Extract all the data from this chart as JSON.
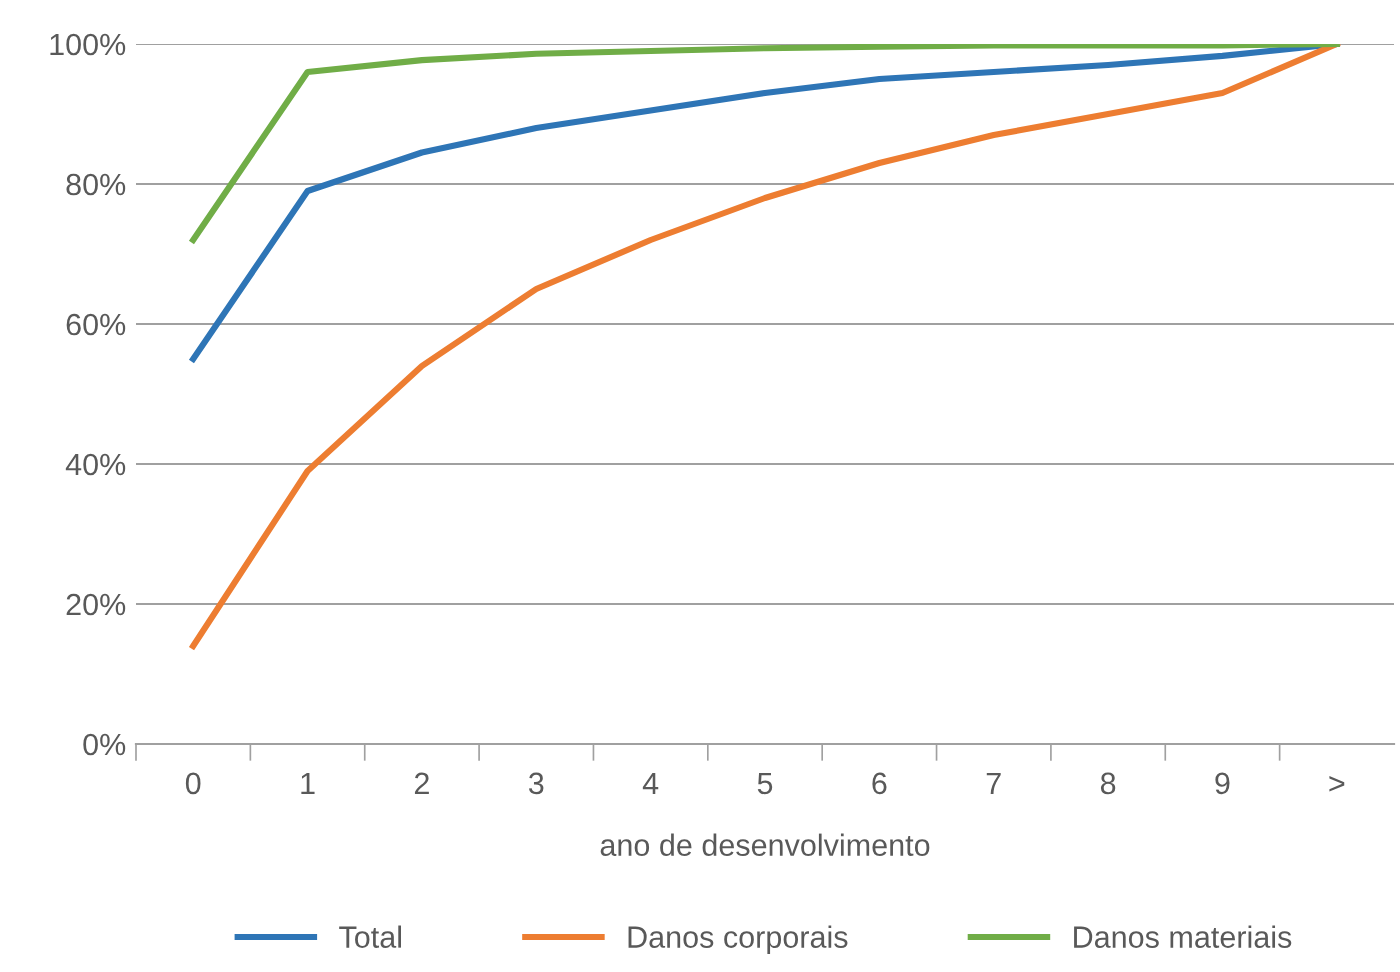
{
  "chart_data": {
    "type": "line",
    "xlabel": "ano de desenvolvimento",
    "categories": [
      "0",
      "1",
      "2",
      "3",
      "4",
      "5",
      "6",
      "7",
      "8",
      "9",
      ">"
    ],
    "series": [
      {
        "name": "Total",
        "color": "#2e75b6",
        "values": [
          55,
          79,
          84.5,
          88,
          90.5,
          93,
          95,
          96,
          97,
          98.3,
          100
        ]
      },
      {
        "name": "Danos corporais",
        "color": "#ed7d31",
        "values": [
          14,
          39,
          54,
          65,
          72,
          78,
          83,
          87,
          90,
          93,
          100
        ]
      },
      {
        "name": "Danos materiais",
        "color": "#70ad47",
        "values": [
          72,
          96,
          97.7,
          98.6,
          99,
          99.4,
          99.6,
          99.8,
          99.8,
          99.8,
          100
        ]
      }
    ],
    "ylim": [
      0,
      100
    ],
    "yticks": [
      {
        "value": 0,
        "label": "0%"
      },
      {
        "value": 20,
        "label": "20%"
      },
      {
        "value": 40,
        "label": "40%"
      },
      {
        "value": 60,
        "label": "60%"
      },
      {
        "value": 80,
        "label": "80%"
      },
      {
        "value": 100,
        "label": "100%"
      }
    ],
    "grid": "y",
    "legend": "bottom",
    "marker": "none",
    "line_style": "solid"
  }
}
